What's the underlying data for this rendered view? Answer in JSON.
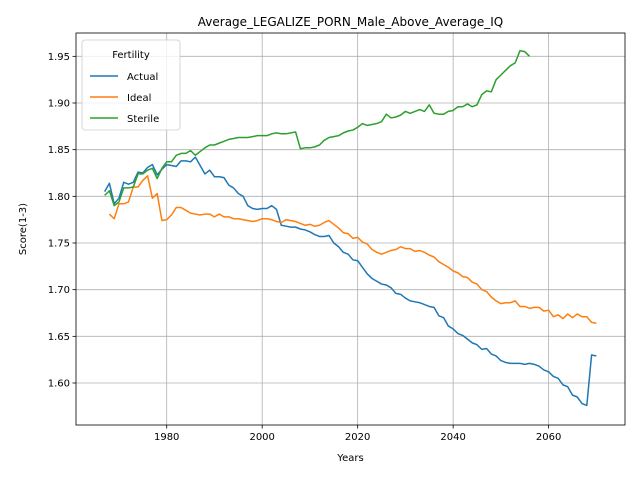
{
  "chart_data": {
    "type": "line",
    "title": "Average_LEGALIZE_PORN_Male_Above_Average_IQ",
    "xlabel": "Years",
    "ylabel": "Score(1-3)",
    "xlim": [
      1961,
      2076
    ],
    "ylim": [
      1.555,
      1.975
    ],
    "xticks": [
      1980,
      2000,
      2020,
      2040,
      2060
    ],
    "yticks": [
      1.6,
      1.65,
      1.7,
      1.75,
      1.8,
      1.85,
      1.9,
      1.95
    ],
    "ytick_labels": [
      "1.60",
      "1.65",
      "1.70",
      "1.75",
      "1.80",
      "1.85",
      "1.90",
      "1.95"
    ],
    "grid": true,
    "legend": {
      "title": "Fertility",
      "position": "top-left"
    },
    "series": [
      {
        "name": "Actual",
        "color": "#1f77b4",
        "points": [
          [
            1967,
            1.805
          ],
          [
            1968,
            1.814
          ],
          [
            1969,
            1.792
          ],
          [
            1970,
            1.798
          ],
          [
            1971,
            1.815
          ],
          [
            1972,
            1.813
          ],
          [
            1973,
            1.815
          ],
          [
            1974,
            1.826
          ],
          [
            1975,
            1.825
          ],
          [
            1976,
            1.831
          ],
          [
            1977,
            1.834
          ],
          [
            1978,
            1.823
          ],
          [
            1979,
            1.829
          ],
          [
            1980,
            1.834
          ],
          [
            1981,
            1.833
          ],
          [
            1982,
            1.832
          ],
          [
            1983,
            1.838
          ],
          [
            1984,
            1.838
          ],
          [
            1985,
            1.837
          ],
          [
            1986,
            1.842
          ],
          [
            1987,
            1.833
          ],
          [
            1988,
            1.824
          ],
          [
            1989,
            1.828
          ],
          [
            1990,
            1.821
          ],
          [
            1991,
            1.821
          ],
          [
            1992,
            1.82
          ],
          [
            1993,
            1.812
          ],
          [
            1994,
            1.809
          ],
          [
            1995,
            1.803
          ],
          [
            1996,
            1.8
          ],
          [
            1997,
            1.79
          ],
          [
            1998,
            1.787
          ],
          [
            1999,
            1.786
          ],
          [
            2000,
            1.787
          ],
          [
            2001,
            1.787
          ],
          [
            2002,
            1.79
          ],
          [
            2003,
            1.786
          ],
          [
            2004,
            1.769
          ],
          [
            2005,
            1.768
          ],
          [
            2006,
            1.767
          ],
          [
            2007,
            1.767
          ],
          [
            2008,
            1.765
          ],
          [
            2009,
            1.764
          ],
          [
            2010,
            1.762
          ],
          [
            2011,
            1.759
          ],
          [
            2012,
            1.757
          ],
          [
            2013,
            1.757
          ],
          [
            2014,
            1.758
          ],
          [
            2015,
            1.75
          ],
          [
            2016,
            1.746
          ],
          [
            2017,
            1.74
          ],
          [
            2018,
            1.738
          ],
          [
            2019,
            1.732
          ],
          [
            2020,
            1.731
          ],
          [
            2021,
            1.724
          ],
          [
            2022,
            1.717
          ],
          [
            2023,
            1.712
          ],
          [
            2024,
            1.709
          ],
          [
            2025,
            1.706
          ],
          [
            2026,
            1.705
          ],
          [
            2027,
            1.702
          ],
          [
            2028,
            1.696
          ],
          [
            2029,
            1.695
          ],
          [
            2030,
            1.691
          ],
          [
            2031,
            1.688
          ],
          [
            2032,
            1.687
          ],
          [
            2033,
            1.686
          ],
          [
            2034,
            1.684
          ],
          [
            2035,
            1.682
          ],
          [
            2036,
            1.681
          ],
          [
            2037,
            1.672
          ],
          [
            2038,
            1.67
          ],
          [
            2039,
            1.661
          ],
          [
            2040,
            1.658
          ],
          [
            2041,
            1.653
          ],
          [
            2042,
            1.651
          ],
          [
            2043,
            1.647
          ],
          [
            2044,
            1.643
          ],
          [
            2045,
            1.641
          ],
          [
            2046,
            1.636
          ],
          [
            2047,
            1.637
          ],
          [
            2048,
            1.631
          ],
          [
            2049,
            1.629
          ],
          [
            2050,
            1.624
          ],
          [
            2051,
            1.622
          ],
          [
            2052,
            1.621
          ],
          [
            2053,
            1.621
          ],
          [
            2054,
            1.621
          ],
          [
            2055,
            1.62
          ],
          [
            2056,
            1.621
          ],
          [
            2057,
            1.62
          ],
          [
            2058,
            1.618
          ],
          [
            2059,
            1.614
          ],
          [
            2060,
            1.612
          ],
          [
            2061,
            1.607
          ],
          [
            2062,
            1.605
          ],
          [
            2063,
            1.598
          ],
          [
            2064,
            1.596
          ],
          [
            2065,
            1.587
          ],
          [
            2066,
            1.585
          ],
          [
            2067,
            1.578
          ],
          [
            2068,
            1.576
          ],
          [
            2069,
            1.63
          ],
          [
            2070,
            1.629
          ]
        ]
      },
      {
        "name": "Ideal",
        "color": "#ff7f0e",
        "points": [
          [
            1968,
            1.781
          ],
          [
            1969,
            1.776
          ],
          [
            1970,
            1.792
          ],
          [
            1971,
            1.792
          ],
          [
            1972,
            1.794
          ],
          [
            1973,
            1.81
          ],
          [
            1974,
            1.81
          ],
          [
            1975,
            1.817
          ],
          [
            1976,
            1.822
          ],
          [
            1977,
            1.798
          ],
          [
            1978,
            1.803
          ],
          [
            1979,
            1.774
          ],
          [
            1980,
            1.775
          ],
          [
            1981,
            1.78
          ],
          [
            1982,
            1.788
          ],
          [
            1983,
            1.788
          ],
          [
            1984,
            1.785
          ],
          [
            1985,
            1.782
          ],
          [
            1986,
            1.781
          ],
          [
            1987,
            1.78
          ],
          [
            1988,
            1.781
          ],
          [
            1989,
            1.781
          ],
          [
            1990,
            1.778
          ],
          [
            1991,
            1.781
          ],
          [
            1992,
            1.778
          ],
          [
            1993,
            1.778
          ],
          [
            1994,
            1.776
          ],
          [
            1995,
            1.776
          ],
          [
            1996,
            1.775
          ],
          [
            1997,
            1.774
          ],
          [
            1998,
            1.773
          ],
          [
            1999,
            1.774
          ],
          [
            2000,
            1.776
          ],
          [
            2001,
            1.776
          ],
          [
            2002,
            1.775
          ],
          [
            2003,
            1.773
          ],
          [
            2004,
            1.772
          ],
          [
            2005,
            1.775
          ],
          [
            2006,
            1.774
          ],
          [
            2007,
            1.773
          ],
          [
            2008,
            1.771
          ],
          [
            2009,
            1.769
          ],
          [
            2010,
            1.77
          ],
          [
            2011,
            1.768
          ],
          [
            2012,
            1.769
          ],
          [
            2013,
            1.772
          ],
          [
            2014,
            1.774
          ],
          [
            2015,
            1.77
          ],
          [
            2016,
            1.766
          ],
          [
            2017,
            1.761
          ],
          [
            2018,
            1.76
          ],
          [
            2019,
            1.755
          ],
          [
            2020,
            1.756
          ],
          [
            2021,
            1.751
          ],
          [
            2022,
            1.749
          ],
          [
            2023,
            1.743
          ],
          [
            2024,
            1.74
          ],
          [
            2025,
            1.738
          ],
          [
            2026,
            1.74
          ],
          [
            2027,
            1.742
          ],
          [
            2028,
            1.743
          ],
          [
            2029,
            1.746
          ],
          [
            2030,
            1.744
          ],
          [
            2031,
            1.744
          ],
          [
            2032,
            1.741
          ],
          [
            2033,
            1.742
          ],
          [
            2034,
            1.74
          ],
          [
            2035,
            1.737
          ],
          [
            2036,
            1.735
          ],
          [
            2037,
            1.73
          ],
          [
            2038,
            1.727
          ],
          [
            2039,
            1.724
          ],
          [
            2040,
            1.72
          ],
          [
            2041,
            1.718
          ],
          [
            2042,
            1.714
          ],
          [
            2043,
            1.713
          ],
          [
            2044,
            1.708
          ],
          [
            2045,
            1.706
          ],
          [
            2046,
            1.7
          ],
          [
            2047,
            1.698
          ],
          [
            2048,
            1.692
          ],
          [
            2049,
            1.688
          ],
          [
            2050,
            1.685
          ],
          [
            2051,
            1.686
          ],
          [
            2052,
            1.686
          ],
          [
            2053,
            1.688
          ],
          [
            2054,
            1.682
          ],
          [
            2055,
            1.682
          ],
          [
            2056,
            1.68
          ],
          [
            2057,
            1.681
          ],
          [
            2058,
            1.681
          ],
          [
            2059,
            1.677
          ],
          [
            2060,
            1.678
          ],
          [
            2061,
            1.671
          ],
          [
            2062,
            1.673
          ],
          [
            2063,
            1.669
          ],
          [
            2064,
            1.674
          ],
          [
            2065,
            1.67
          ],
          [
            2066,
            1.674
          ],
          [
            2067,
            1.671
          ],
          [
            2068,
            1.671
          ],
          [
            2069,
            1.665
          ],
          [
            2070,
            1.664
          ]
        ]
      },
      {
        "name": "Sterile",
        "color": "#2ca02c",
        "points": [
          [
            1967,
            1.801
          ],
          [
            1968,
            1.806
          ],
          [
            1969,
            1.79
          ],
          [
            1970,
            1.794
          ],
          [
            1971,
            1.809
          ],
          [
            1972,
            1.809
          ],
          [
            1973,
            1.81
          ],
          [
            1974,
            1.824
          ],
          [
            1975,
            1.824
          ],
          [
            1976,
            1.828
          ],
          [
            1977,
            1.83
          ],
          [
            1978,
            1.819
          ],
          [
            1979,
            1.83
          ],
          [
            1980,
            1.837
          ],
          [
            1981,
            1.837
          ],
          [
            1982,
            1.844
          ],
          [
            1983,
            1.846
          ],
          [
            1984,
            1.846
          ],
          [
            1985,
            1.849
          ],
          [
            1986,
            1.844
          ],
          [
            1987,
            1.848
          ],
          [
            1988,
            1.852
          ],
          [
            1989,
            1.855
          ],
          [
            1990,
            1.855
          ],
          [
            1991,
            1.857
          ],
          [
            1992,
            1.859
          ],
          [
            1993,
            1.861
          ],
          [
            1994,
            1.862
          ],
          [
            1995,
            1.863
          ],
          [
            1996,
            1.863
          ],
          [
            1997,
            1.863
          ],
          [
            1998,
            1.864
          ],
          [
            1999,
            1.865
          ],
          [
            2000,
            1.865
          ],
          [
            2001,
            1.865
          ],
          [
            2002,
            1.867
          ],
          [
            2003,
            1.868
          ],
          [
            2004,
            1.867
          ],
          [
            2005,
            1.867
          ],
          [
            2006,
            1.868
          ],
          [
            2007,
            1.869
          ],
          [
            2008,
            1.851
          ],
          [
            2009,
            1.852
          ],
          [
            2010,
            1.852
          ],
          [
            2011,
            1.853
          ],
          [
            2012,
            1.855
          ],
          [
            2013,
            1.86
          ],
          [
            2014,
            1.863
          ],
          [
            2015,
            1.864
          ],
          [
            2016,
            1.865
          ],
          [
            2017,
            1.868
          ],
          [
            2018,
            1.87
          ],
          [
            2019,
            1.871
          ],
          [
            2020,
            1.874
          ],
          [
            2021,
            1.878
          ],
          [
            2022,
            1.876
          ],
          [
            2023,
            1.877
          ],
          [
            2024,
            1.878
          ],
          [
            2025,
            1.88
          ],
          [
            2026,
            1.888
          ],
          [
            2027,
            1.884
          ],
          [
            2028,
            1.885
          ],
          [
            2029,
            1.887
          ],
          [
            2030,
            1.891
          ],
          [
            2031,
            1.889
          ],
          [
            2032,
            1.891
          ],
          [
            2033,
            1.893
          ],
          [
            2034,
            1.891
          ],
          [
            2035,
            1.898
          ],
          [
            2036,
            1.889
          ],
          [
            2037,
            1.888
          ],
          [
            2038,
            1.888
          ],
          [
            2039,
            1.891
          ],
          [
            2040,
            1.892
          ],
          [
            2041,
            1.896
          ],
          [
            2042,
            1.896
          ],
          [
            2043,
            1.899
          ],
          [
            2044,
            1.896
          ],
          [
            2045,
            1.898
          ],
          [
            2046,
            1.909
          ],
          [
            2047,
            1.913
          ],
          [
            2048,
            1.912
          ],
          [
            2049,
            1.925
          ],
          [
            2050,
            1.93
          ],
          [
            2051,
            1.935
          ],
          [
            2052,
            1.94
          ],
          [
            2053,
            1.943
          ],
          [
            2054,
            1.956
          ],
          [
            2055,
            1.955
          ],
          [
            2056,
            1.95
          ]
        ]
      }
    ]
  }
}
